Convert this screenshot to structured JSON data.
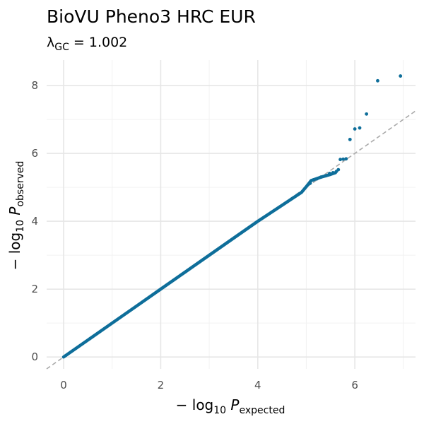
{
  "chart_data": {
    "type": "scatter",
    "title": "BioVU Pheno3 HRC EUR",
    "subtitle": {
      "symbol": "λ",
      "symbol_subscript": "GC",
      "operator": " = ",
      "value": "1.002"
    },
    "xlabel": {
      "prefix": "− log",
      "base": "10",
      "var": " P",
      "subscript": "expected"
    },
    "ylabel": {
      "prefix": "− log",
      "base": "10",
      "var": " P",
      "subscript": "observed"
    },
    "xlim": [
      -0.35,
      7.25
    ],
    "ylim": [
      -0.35,
      8.75
    ],
    "x_ticks": [
      "0",
      "2",
      "4",
      "6"
    ],
    "x_tick_values": [
      0,
      2,
      4,
      6
    ],
    "y_ticks": [
      "0",
      "2",
      "4",
      "6",
      "8"
    ],
    "y_tick_values": [
      0,
      2,
      4,
      6,
      8
    ],
    "grid": true,
    "reference_line": {
      "slope": 1,
      "intercept": 0,
      "style": "dashed",
      "color": "#aaaaaa"
    },
    "point_color": "#0e6e9a",
    "bulk_curve": [
      [
        0,
        0
      ],
      [
        0.5,
        0.5
      ],
      [
        1,
        1
      ],
      [
        1.5,
        1.5
      ],
      [
        2,
        2
      ],
      [
        2.5,
        2.5
      ],
      [
        3,
        3
      ],
      [
        3.5,
        3.5
      ],
      [
        4,
        4
      ],
      [
        4.5,
        4.47
      ],
      [
        4.9,
        4.85
      ],
      [
        5.0,
        5.02
      ],
      [
        5.1,
        5.2
      ],
      [
        5.3,
        5.3
      ],
      [
        5.5,
        5.38
      ],
      [
        5.6,
        5.43
      ]
    ],
    "points": [
      [
        5.08,
        5.12
      ],
      [
        5.15,
        5.22
      ],
      [
        5.22,
        5.25
      ],
      [
        5.3,
        5.3
      ],
      [
        5.4,
        5.34
      ],
      [
        5.48,
        5.41
      ],
      [
        5.55,
        5.43
      ],
      [
        5.62,
        5.47
      ],
      [
        5.66,
        5.52
      ],
      [
        5.7,
        5.82
      ],
      [
        5.76,
        5.83
      ],
      [
        5.82,
        5.84
      ],
      [
        5.9,
        6.41
      ],
      [
        6.0,
        6.72
      ],
      [
        6.1,
        6.75
      ],
      [
        6.24,
        7.16
      ],
      [
        6.47,
        8.14
      ],
      [
        6.94,
        8.28
      ]
    ]
  }
}
